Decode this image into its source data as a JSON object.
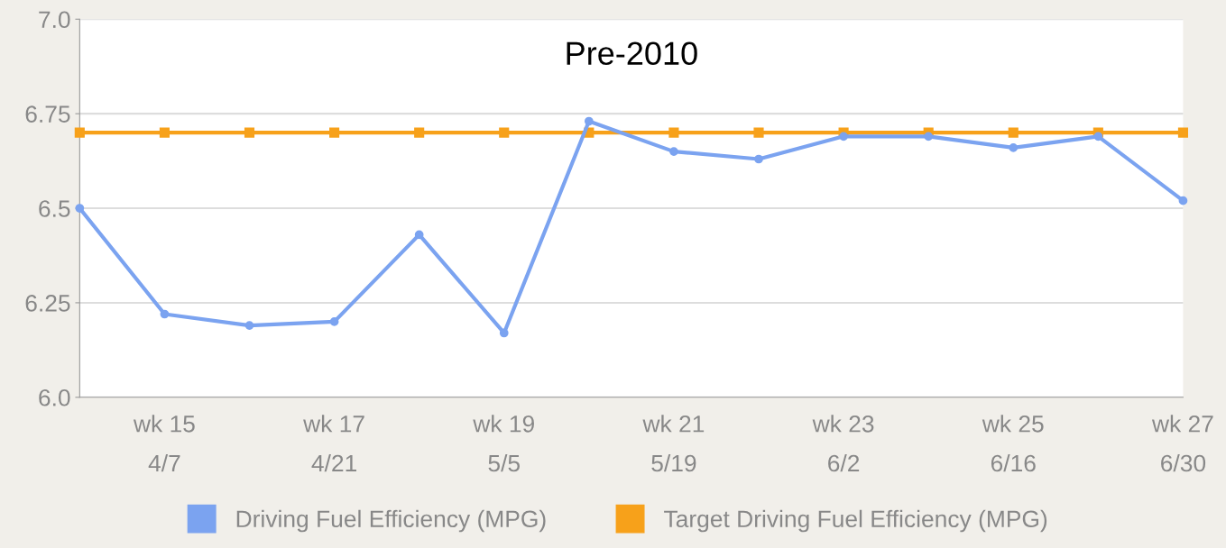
{
  "chart_data": {
    "type": "line",
    "title": "Pre-2010",
    "categories": [
      null,
      "wk 15\n4/7",
      null,
      "wk 17\n4/21",
      null,
      "wk 19\n5/5",
      null,
      "wk 21\n5/19",
      null,
      "wk 23\n6/2",
      null,
      "wk 25\n6/16",
      null,
      "wk 27\n6/30"
    ],
    "series": [
      {
        "name": "Driving Fuel Efficiency (MPG)",
        "color": "#7ba3f0",
        "marker": "circle",
        "values": [
          6.5,
          6.22,
          6.19,
          6.2,
          6.43,
          6.17,
          6.73,
          6.65,
          6.63,
          6.69,
          6.69,
          6.66,
          6.69,
          6.52
        ]
      },
      {
        "name": "Target Driving Fuel Efficiency (MPG)",
        "color": "#f7a11a",
        "marker": "square",
        "values": [
          6.7,
          6.7,
          6.7,
          6.7,
          6.7,
          6.7,
          6.7,
          6.7,
          6.7,
          6.7,
          6.7,
          6.7,
          6.7,
          6.7
        ]
      }
    ],
    "ylim": [
      6.0,
      7.0
    ],
    "yticks": [
      {
        "value": 6.0,
        "label": "6.0"
      },
      6.25,
      6.5,
      6.75,
      {
        "value": 7.0,
        "label": "7.0"
      }
    ],
    "grid": "y",
    "legend": "bottom",
    "line_style": "solid"
  }
}
